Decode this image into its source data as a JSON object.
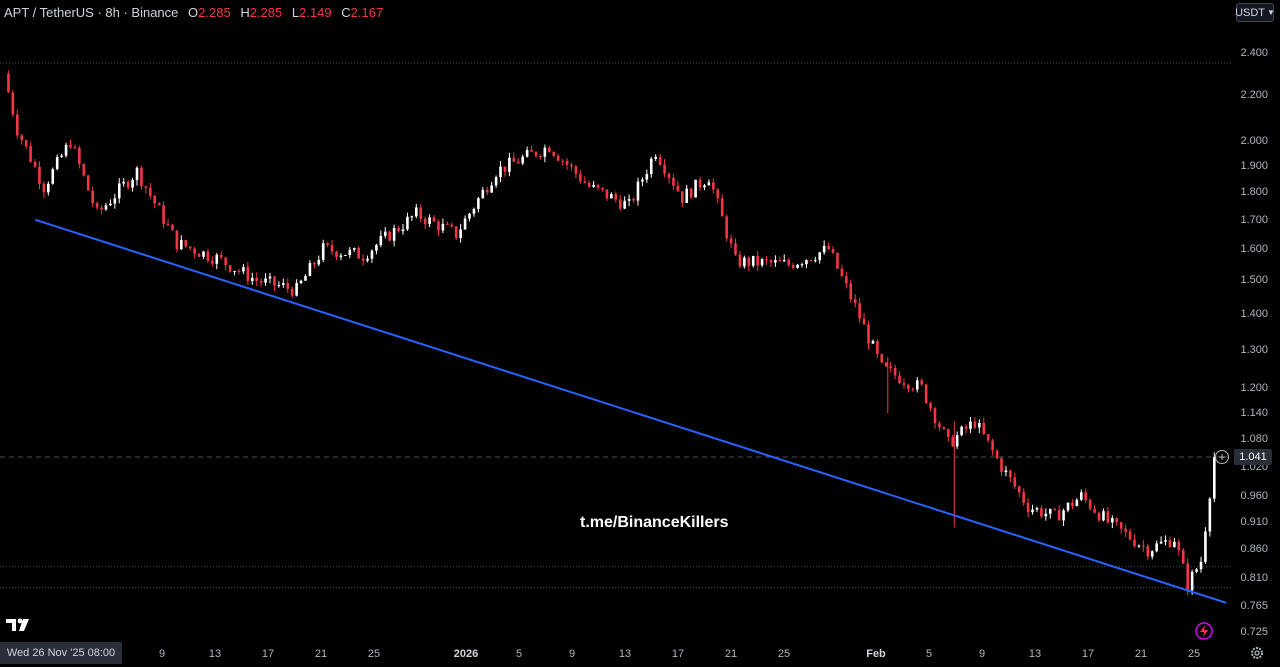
{
  "header": {
    "symbol": "APT / TetherUS · 8h · Binance",
    "open_label": "O",
    "open_value": "2.285",
    "high_label": "H",
    "high_value": "2.285",
    "low_label": "L",
    "low_value": "2.149",
    "close_label": "C",
    "close_value": "2.167"
  },
  "currency_button": {
    "label": "USDT",
    "icon": "chevron-down-icon"
  },
  "price_axis": {
    "labels": [
      "2.400",
      "2.200",
      "2.000",
      "1.900",
      "1.800",
      "1.700",
      "1.600",
      "1.500",
      "1.400",
      "1.300",
      "1.200",
      "1.140",
      "1.080",
      "1.020",
      "0.960",
      "0.910",
      "0.860",
      "0.810",
      "0.765",
      "0.725"
    ],
    "scale": "log"
  },
  "current_price": "1.041",
  "time_axis": {
    "cursor_label": "Wed 26 Nov '25   08:00",
    "labels": [
      "9",
      "13",
      "17",
      "21",
      "25",
      "2026",
      "5",
      "9",
      "13",
      "17",
      "21",
      "25",
      "Feb",
      "5",
      "9",
      "13",
      "17",
      "21",
      "25"
    ]
  },
  "watermark": "t.me/BinanceKillers",
  "colors": {
    "up": "#ffffff",
    "down": "#f23645",
    "trendline": "#2962ff",
    "background": "#000000"
  },
  "chart_data": {
    "type": "candlestick",
    "symbol": "APT/USDT",
    "interval": "8h",
    "exchange": "Binance",
    "y_scale": "log",
    "ylim": [
      0.72,
      2.55
    ],
    "date_range": [
      "2025-11-26",
      "2026-02-25"
    ],
    "price_path": [
      {
        "date": "2025-11-26",
        "close": 2.3
      },
      {
        "date": "2025-11-27",
        "close": 2.05
      },
      {
        "date": "2025-11-29",
        "close": 1.82
      },
      {
        "date": "2025-12-01",
        "close": 2.0
      },
      {
        "date": "2025-12-03",
        "close": 1.72
      },
      {
        "date": "2025-12-06",
        "close": 1.88
      },
      {
        "date": "2025-12-09",
        "close": 1.62
      },
      {
        "date": "2025-12-12",
        "close": 1.57
      },
      {
        "date": "2025-12-15",
        "close": 1.5
      },
      {
        "date": "2025-12-18",
        "close": 1.47
      },
      {
        "date": "2025-12-20",
        "close": 1.6
      },
      {
        "date": "2025-12-23",
        "close": 1.58
      },
      {
        "date": "2025-12-27",
        "close": 1.72
      },
      {
        "date": "2025-12-30",
        "close": 1.65
      },
      {
        "date": "2026-01-02",
        "close": 1.88
      },
      {
        "date": "2026-01-06",
        "close": 1.98
      },
      {
        "date": "2026-01-09",
        "close": 1.82
      },
      {
        "date": "2026-01-12",
        "close": 1.75
      },
      {
        "date": "2026-01-14",
        "close": 1.96
      },
      {
        "date": "2026-01-16",
        "close": 1.78
      },
      {
        "date": "2026-01-18",
        "close": 1.86
      },
      {
        "date": "2026-01-20",
        "close": 1.56
      },
      {
        "date": "2026-01-24",
        "close": 1.55
      },
      {
        "date": "2026-01-27",
        "close": 1.6
      },
      {
        "date": "2026-01-29",
        "close": 1.42
      },
      {
        "date": "2026-01-31",
        "close": 1.25
      },
      {
        "date": "2026-02-03",
        "close": 1.2
      },
      {
        "date": "2026-02-05",
        "close": 1.07
      },
      {
        "date": "2026-02-07",
        "close": 1.12
      },
      {
        "date": "2026-02-09",
        "close": 1.02
      },
      {
        "date": "2026-02-11",
        "close": 0.94
      },
      {
        "date": "2026-02-13",
        "close": 0.92
      },
      {
        "date": "2026-02-15",
        "close": 0.96
      },
      {
        "date": "2026-02-17",
        "close": 0.91
      },
      {
        "date": "2026-02-20",
        "close": 0.86
      },
      {
        "date": "2026-02-22",
        "close": 0.88
      },
      {
        "date": "2026-02-23",
        "close": 0.8
      },
      {
        "date": "2026-02-24",
        "close": 0.84
      },
      {
        "date": "2026-02-25",
        "close": 1.041
      }
    ],
    "trendline": {
      "from": {
        "date": "2025-11-27",
        "price": 1.7
      },
      "to": {
        "date": "2026-02-25",
        "price": 0.77
      }
    },
    "horizontal_lines": [
      2.35,
      1.041,
      0.83,
      0.795
    ],
    "grid": false
  }
}
